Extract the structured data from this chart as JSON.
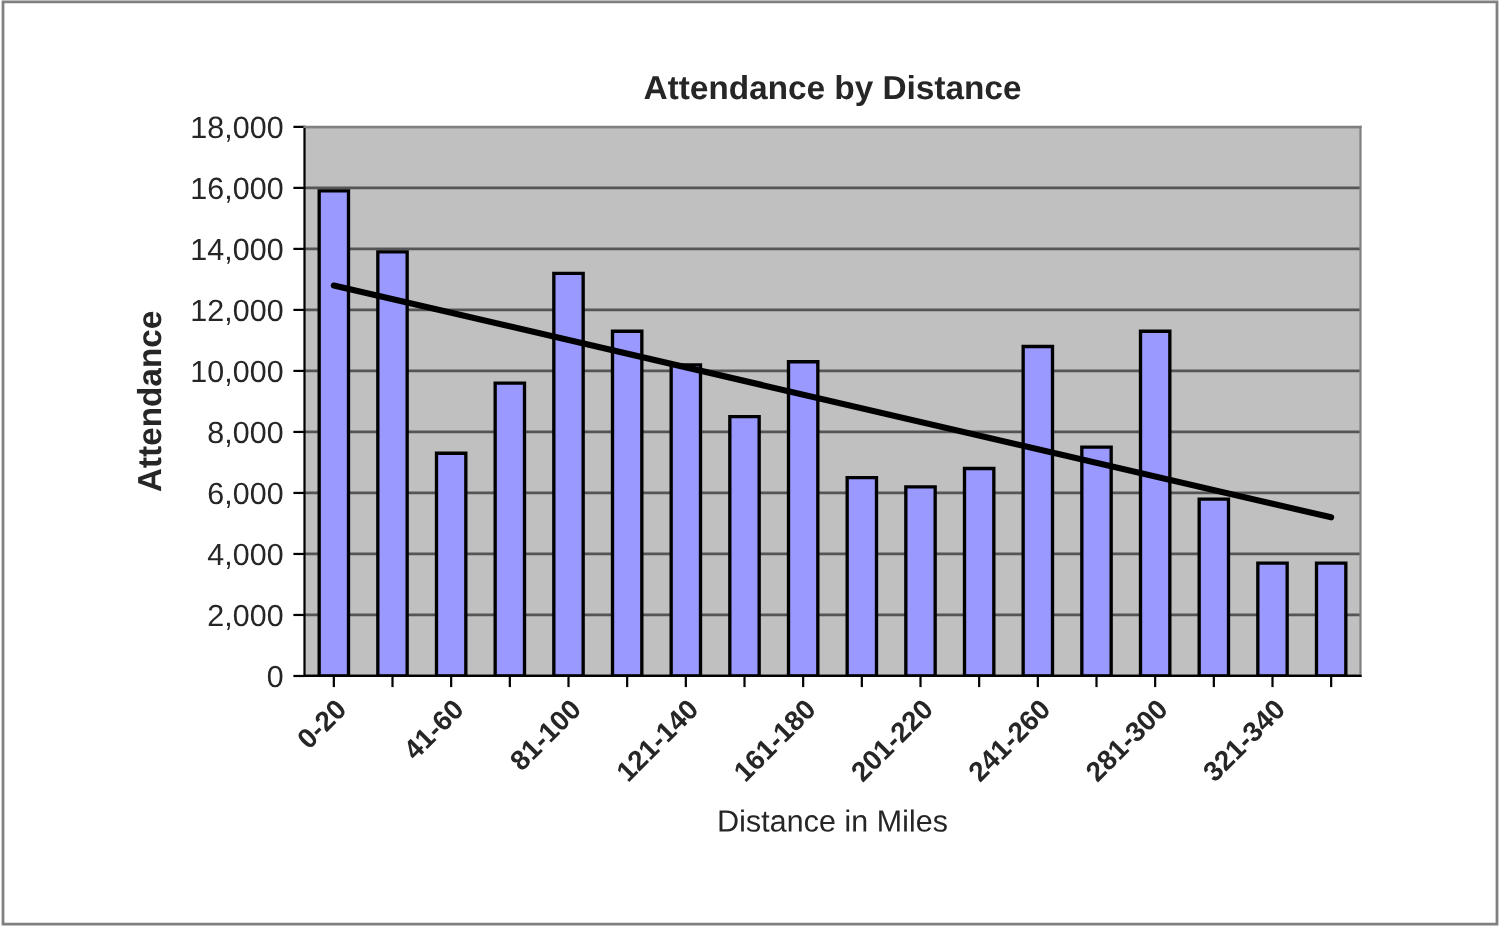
{
  "chart_data": {
    "type": "bar",
    "title": "Attendance by Distance",
    "xlabel": "Distance in Miles",
    "ylabel": "Attendance",
    "categories": [
      "0-20",
      null,
      "41-60",
      null,
      "81-100",
      null,
      "121-140",
      null,
      "161-180",
      null,
      "201-220",
      null,
      "241-260",
      null,
      "281-300",
      null,
      "321-340",
      null
    ],
    "series": [
      {
        "color": "#9999ff",
        "values": [
          15900,
          13900,
          7300,
          9600,
          13200,
          11300,
          10200,
          8500,
          10300,
          6500,
          6200,
          6800,
          10800,
          7500,
          11300,
          5800,
          3700,
          3700
        ]
      },
      {
        "type": "line",
        "color": "#000000",
        "values": [
          12800,
          null,
          null,
          null,
          null,
          null,
          null,
          null,
          null,
          null,
          null,
          null,
          null,
          null,
          null,
          null,
          null,
          5200
        ]
      }
    ],
    "ylim": [
      0,
      18000
    ],
    "yticks": [
      {
        "value": 0,
        "label": "0"
      },
      {
        "value": 2000,
        "label": "2,000"
      },
      {
        "value": 4000,
        "label": "4,000"
      },
      {
        "value": 6000,
        "label": "6,000"
      },
      {
        "value": 8000,
        "label": "8,000"
      },
      {
        "value": 10000,
        "label": "10,000"
      },
      {
        "value": 12000,
        "label": "12,000"
      },
      {
        "value": 14000,
        "label": "14,000"
      },
      {
        "value": 16000,
        "label": "16,000"
      },
      {
        "value": 18000,
        "label": "18,000"
      }
    ],
    "grid": "y"
  }
}
